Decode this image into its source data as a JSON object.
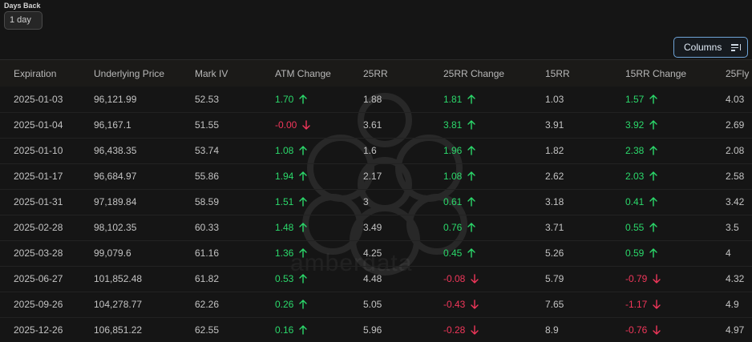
{
  "controls": {
    "days_back_label": "Days Back",
    "days_back_value": "1 day",
    "columns_label": "Columns"
  },
  "watermark_text": "amberdata",
  "table": {
    "headers": [
      "Expiration",
      "Underlying Price",
      "Mark IV",
      "ATM Change",
      "25RR",
      "25RR Change",
      "15RR",
      "15RR Change",
      "25Fly"
    ],
    "rows": [
      {
        "expiration": "2025-01-03",
        "price": "96,121.99",
        "mark_iv": "52.53",
        "atm": "1.70",
        "atm_dir": "up",
        "rr25": "1.88",
        "rr25c": "1.81",
        "rr25c_dir": "up",
        "rr15": "1.03",
        "rr15c": "1.57",
        "rr15c_dir": "up",
        "fly25": "4.03"
      },
      {
        "expiration": "2025-01-04",
        "price": "96,167.1",
        "mark_iv": "51.55",
        "atm": "-0.00",
        "atm_dir": "down",
        "rr25": "3.61",
        "rr25c": "3.81",
        "rr25c_dir": "up",
        "rr15": "3.91",
        "rr15c": "3.92",
        "rr15c_dir": "up",
        "fly25": "2.69"
      },
      {
        "expiration": "2025-01-10",
        "price": "96,438.35",
        "mark_iv": "53.74",
        "atm": "1.08",
        "atm_dir": "up",
        "rr25": "1.6",
        "rr25c": "1.96",
        "rr25c_dir": "up",
        "rr15": "1.82",
        "rr15c": "2.38",
        "rr15c_dir": "up",
        "fly25": "2.08"
      },
      {
        "expiration": "2025-01-17",
        "price": "96,684.97",
        "mark_iv": "55.86",
        "atm": "1.94",
        "atm_dir": "up",
        "rr25": "2.17",
        "rr25c": "1.08",
        "rr25c_dir": "up",
        "rr15": "2.62",
        "rr15c": "2.03",
        "rr15c_dir": "up",
        "fly25": "2.58"
      },
      {
        "expiration": "2025-01-31",
        "price": "97,189.84",
        "mark_iv": "58.59",
        "atm": "1.51",
        "atm_dir": "up",
        "rr25": "3",
        "rr25c": "0.61",
        "rr25c_dir": "up",
        "rr15": "3.18",
        "rr15c": "0.41",
        "rr15c_dir": "up",
        "fly25": "3.42"
      },
      {
        "expiration": "2025-02-28",
        "price": "98,102.35",
        "mark_iv": "60.33",
        "atm": "1.48",
        "atm_dir": "up",
        "rr25": "3.49",
        "rr25c": "0.76",
        "rr25c_dir": "up",
        "rr15": "3.71",
        "rr15c": "0.55",
        "rr15c_dir": "up",
        "fly25": "3.5"
      },
      {
        "expiration": "2025-03-28",
        "price": "99,079.6",
        "mark_iv": "61.16",
        "atm": "1.36",
        "atm_dir": "up",
        "rr25": "4.25",
        "rr25c": "0.45",
        "rr25c_dir": "up",
        "rr15": "5.26",
        "rr15c": "0.59",
        "rr15c_dir": "up",
        "fly25": "4"
      },
      {
        "expiration": "2025-06-27",
        "price": "101,852.48",
        "mark_iv": "61.82",
        "atm": "0.53",
        "atm_dir": "up",
        "rr25": "4.48",
        "rr25c": "-0.08",
        "rr25c_dir": "down",
        "rr15": "5.79",
        "rr15c": "-0.79",
        "rr15c_dir": "down",
        "fly25": "4.32"
      },
      {
        "expiration": "2025-09-26",
        "price": "104,278.77",
        "mark_iv": "62.26",
        "atm": "0.26",
        "atm_dir": "up",
        "rr25": "5.05",
        "rr25c": "-0.43",
        "rr25c_dir": "down",
        "rr15": "7.65",
        "rr15c": "-1.17",
        "rr15c_dir": "down",
        "fly25": "4.9"
      },
      {
        "expiration": "2025-12-26",
        "price": "106,851.22",
        "mark_iv": "62.55",
        "atm": "0.16",
        "atm_dir": "up",
        "rr25": "5.96",
        "rr25c": "-0.28",
        "rr25c_dir": "down",
        "rr15": "8.9",
        "rr15c": "-0.76",
        "rr15c_dir": "down",
        "fly25": "4.97"
      }
    ]
  },
  "colors": {
    "positive": "#2bd96b",
    "negative": "#f0365a",
    "accent_border": "#6fa4d8"
  }
}
